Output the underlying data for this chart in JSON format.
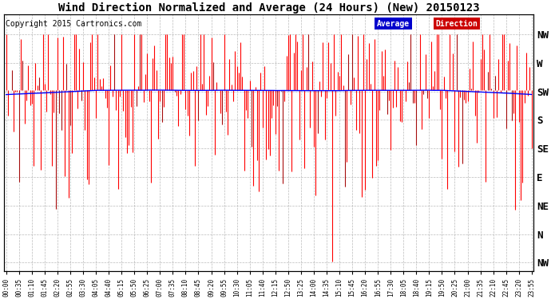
{
  "title": "Wind Direction Normalized and Average (24 Hours) (New) 20150123",
  "copyright": "Copyright 2015 Cartronics.com",
  "background_color": "#ffffff",
  "plot_bg_color": "#ffffff",
  "grid_color": "#aaaaaa",
  "y_labels": [
    "NW",
    "W",
    "SW",
    "S",
    "SE",
    "E",
    "NE",
    "N",
    "NW"
  ],
  "y_ticks": [
    8,
    7,
    6,
    5,
    4,
    3,
    2,
    1,
    0
  ],
  "avg_value": 6.0,
  "bar_color": "#ff0000",
  "avg_color": "#0000ff",
  "legend_avg_bg": "#0000cc",
  "legend_dir_bg": "#cc0000",
  "legend_text_color": "#ffffff",
  "x_tick_every_minutes": 35,
  "num_points": 288,
  "minutes_per_point": 5,
  "title_fontsize": 10,
  "copyright_fontsize": 7,
  "ylabel_fontsize": 9,
  "noise_std": 1.8,
  "avg_line_value": 6.05
}
